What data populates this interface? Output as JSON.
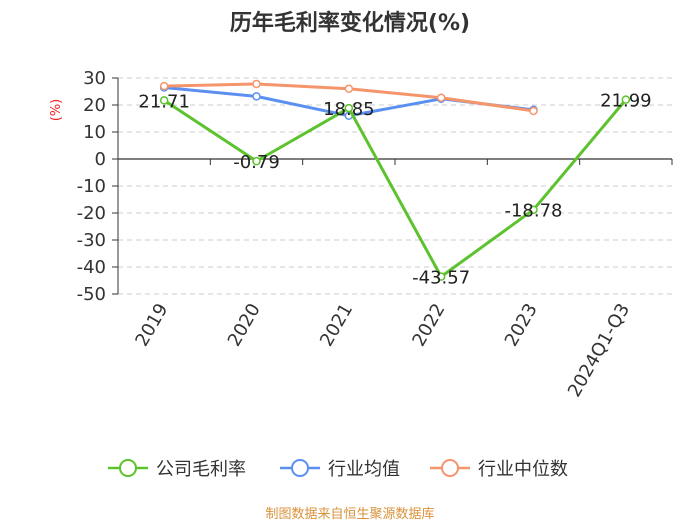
{
  "chart_data": {
    "type": "line",
    "title": "历年毛利率变化情况(%)",
    "ylabel": "(%)",
    "categories": [
      "2019",
      "2020",
      "2021",
      "2022",
      "2023",
      "2024Q1-Q3"
    ],
    "ylim": [
      -50,
      30
    ],
    "yticks": [
      30,
      20,
      10,
      0,
      -10,
      -20,
      -30,
      -40,
      -50
    ],
    "grid": true,
    "legend_position": "bottom",
    "series": [
      {
        "name": "公司毛利率",
        "color": "#5cc22e",
        "values": [
          21.71,
          -0.79,
          18.85,
          -43.57,
          -18.78,
          21.99
        ],
        "labels": [
          "21.71",
          "-0.79",
          "18.85",
          "-43.57",
          "-18.78",
          "21.99"
        ]
      },
      {
        "name": "行业均值",
        "color": "#5b8ff0",
        "values": [
          26.5,
          23.2,
          16.0,
          22.3,
          18.2,
          null
        ]
      },
      {
        "name": "行业中位数",
        "color": "#f5956b",
        "values": [
          27.0,
          27.8,
          26.0,
          22.7,
          17.8,
          null
        ]
      }
    ],
    "source": "制图数据来自恒生聚源数据库"
  },
  "colors": {
    "axis_label": "#ee2222",
    "source": "#d9923a",
    "grid": "#cccccc"
  }
}
